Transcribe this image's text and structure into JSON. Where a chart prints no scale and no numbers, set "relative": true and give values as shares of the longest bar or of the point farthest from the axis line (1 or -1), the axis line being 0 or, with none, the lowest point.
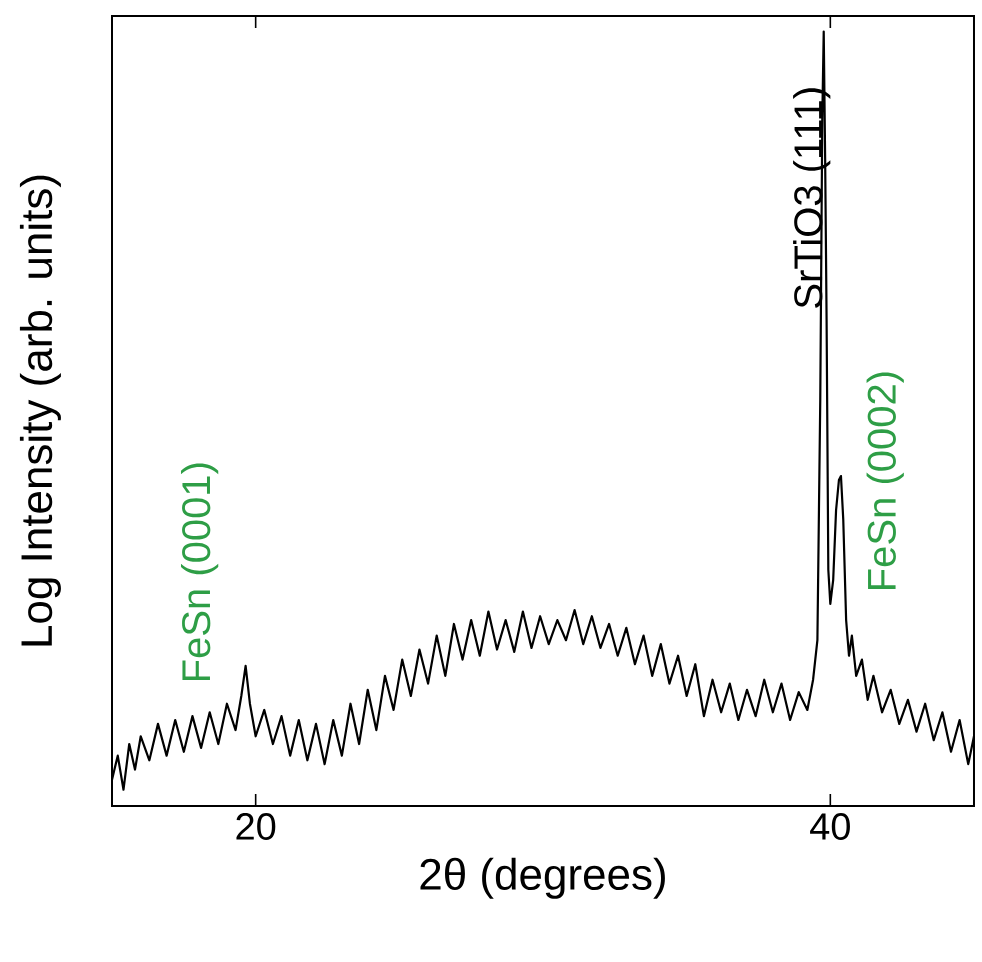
{
  "chart_data": {
    "type": "line",
    "xlabel": "2θ (degrees)",
    "ylabel": "Log Intensity (arb. units)",
    "relative": true,
    "xlim": [
      15,
      45
    ],
    "xticks": [
      20,
      40
    ],
    "color": "#000000",
    "x": [
      15.0,
      15.2,
      15.4,
      15.6,
      15.8,
      16.0,
      16.3,
      16.6,
      16.9,
      17.2,
      17.5,
      17.8,
      18.1,
      18.4,
      18.7,
      19.0,
      19.3,
      19.5,
      19.65,
      19.8,
      20.0,
      20.3,
      20.6,
      20.9,
      21.2,
      21.5,
      21.8,
      22.1,
      22.4,
      22.7,
      23.0,
      23.3,
      23.6,
      23.9,
      24.2,
      24.5,
      24.8,
      25.1,
      25.4,
      25.7,
      26.0,
      26.3,
      26.6,
      26.9,
      27.2,
      27.5,
      27.8,
      28.1,
      28.4,
      28.7,
      29.0,
      29.3,
      29.6,
      29.9,
      30.2,
      30.5,
      30.8,
      31.1,
      31.4,
      31.7,
      32.0,
      32.3,
      32.6,
      32.9,
      33.2,
      33.5,
      33.8,
      34.1,
      34.4,
      34.7,
      35.0,
      35.3,
      35.6,
      35.9,
      36.2,
      36.5,
      36.8,
      37.1,
      37.4,
      37.7,
      38.0,
      38.3,
      38.6,
      38.9,
      39.2,
      39.4,
      39.55,
      39.65,
      39.72,
      39.77,
      39.82,
      39.87,
      39.93,
      40.0,
      40.1,
      40.2,
      40.3,
      40.37,
      40.45,
      40.55,
      40.65,
      40.75,
      40.9,
      41.1,
      41.3,
      41.5,
      41.8,
      42.1,
      42.4,
      42.7,
      43.0,
      43.3,
      43.6,
      43.9,
      44.2,
      44.5,
      44.8,
      45.0
    ],
    "values": [
      0.034,
      0.065,
      0.021,
      0.08,
      0.047,
      0.09,
      0.059,
      0.106,
      0.065,
      0.111,
      0.07,
      0.116,
      0.075,
      0.121,
      0.08,
      0.132,
      0.098,
      0.142,
      0.181,
      0.132,
      0.09,
      0.124,
      0.08,
      0.116,
      0.065,
      0.111,
      0.059,
      0.106,
      0.054,
      0.111,
      0.065,
      0.132,
      0.08,
      0.15,
      0.098,
      0.168,
      0.124,
      0.189,
      0.142,
      0.202,
      0.158,
      0.22,
      0.168,
      0.235,
      0.189,
      0.24,
      0.194,
      0.251,
      0.202,
      0.24,
      0.199,
      0.251,
      0.204,
      0.245,
      0.209,
      0.24,
      0.214,
      0.253,
      0.209,
      0.245,
      0.204,
      0.235,
      0.194,
      0.23,
      0.183,
      0.22,
      0.168,
      0.209,
      0.158,
      0.194,
      0.142,
      0.183,
      0.116,
      0.163,
      0.121,
      0.158,
      0.111,
      0.15,
      0.116,
      0.163,
      0.121,
      0.158,
      0.111,
      0.147,
      0.124,
      0.163,
      0.214,
      0.525,
      0.886,
      1.0,
      0.835,
      0.628,
      0.305,
      0.261,
      0.292,
      0.382,
      0.421,
      0.426,
      0.37,
      0.24,
      0.194,
      0.22,
      0.168,
      0.189,
      0.137,
      0.168,
      0.121,
      0.15,
      0.106,
      0.137,
      0.096,
      0.132,
      0.085,
      0.121,
      0.07,
      0.111,
      0.054,
      0.09
    ],
    "annotations": [
      {
        "text": "FeSn (0001)",
        "x": 19.65,
        "y": 0.181
      },
      {
        "text": "SrTiO3 (111)",
        "x": 39.77,
        "y": 1.0
      },
      "FeSn (0002)"
    ]
  }
}
